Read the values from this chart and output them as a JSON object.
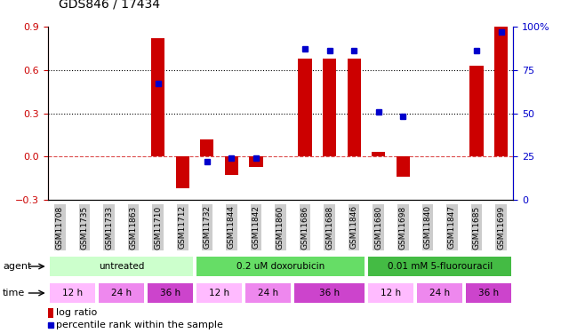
{
  "title": "GDS846 / 17434",
  "samples": [
    "GSM11708",
    "GSM11735",
    "GSM11733",
    "GSM11863",
    "GSM11710",
    "GSM11712",
    "GSM11732",
    "GSM11844",
    "GSM11842",
    "GSM11860",
    "GSM11686",
    "GSM11688",
    "GSM11846",
    "GSM11680",
    "GSM11698",
    "GSM11840",
    "GSM11847",
    "GSM11685",
    "GSM11699"
  ],
  "log_ratio": [
    0.0,
    0.0,
    0.0,
    0.0,
    0.82,
    -0.22,
    0.12,
    -0.13,
    -0.07,
    0.0,
    0.68,
    0.68,
    0.68,
    0.03,
    -0.14,
    0.0,
    0.0,
    0.63,
    0.92
  ],
  "percentile": [
    0,
    0,
    0,
    0,
    67,
    0,
    22,
    24,
    24,
    0,
    87,
    86,
    86,
    51,
    48,
    0,
    0,
    86,
    97
  ],
  "ylim_left": [
    -0.3,
    0.9
  ],
  "ylim_right": [
    0,
    100
  ],
  "yticks_left": [
    -0.3,
    0.0,
    0.3,
    0.6,
    0.9
  ],
  "yticks_right": [
    0,
    25,
    50,
    75,
    100
  ],
  "grid_lines": [
    0.6,
    0.3
  ],
  "agent_groups": [
    {
      "label": "untreated",
      "start": 0,
      "end": 6,
      "color": "#ccffcc"
    },
    {
      "label": "0.2 uM doxorubicin",
      "start": 6,
      "end": 13,
      "color": "#66dd66"
    },
    {
      "label": "0.01 mM 5-fluorouracil",
      "start": 13,
      "end": 19,
      "color": "#44bb44"
    }
  ],
  "time_groups": [
    {
      "label": "12 h",
      "start": 0,
      "end": 2,
      "color": "#ffbbff"
    },
    {
      "label": "24 h",
      "start": 2,
      "end": 4,
      "color": "#ee88ee"
    },
    {
      "label": "36 h",
      "start": 4,
      "end": 6,
      "color": "#cc44cc"
    },
    {
      "label": "12 h",
      "start": 6,
      "end": 8,
      "color": "#ffbbff"
    },
    {
      "label": "24 h",
      "start": 8,
      "end": 10,
      "color": "#ee88ee"
    },
    {
      "label": "36 h",
      "start": 10,
      "end": 13,
      "color": "#cc44cc"
    },
    {
      "label": "12 h",
      "start": 13,
      "end": 15,
      "color": "#ffbbff"
    },
    {
      "label": "24 h",
      "start": 15,
      "end": 17,
      "color": "#ee88ee"
    },
    {
      "label": "36 h",
      "start": 17,
      "end": 19,
      "color": "#cc44cc"
    }
  ],
  "bar_color": "#cc0000",
  "dot_color": "#0000cc",
  "bar_width": 0.55,
  "dot_size": 5,
  "zero_line_color": "#cc0000",
  "sample_bg_color": "#cccccc",
  "sample_label_fontsize": 6.5,
  "row_label_fontsize": 8
}
